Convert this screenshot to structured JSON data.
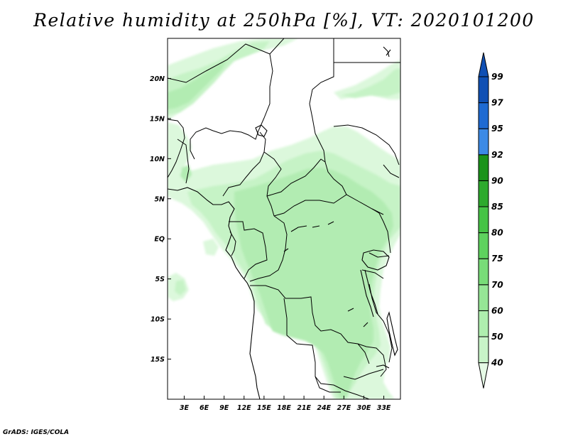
{
  "title": "Relative humidity at 250hPa [%], VT: 2020101200",
  "credit": "GrADS: IGES/COLA",
  "map": {
    "projection": "lat-lon",
    "lon_range": [
      0.5,
      35.5
    ],
    "lat_range": [
      -20,
      25
    ],
    "y_ticks": [
      {
        "value": 20,
        "label": "20N"
      },
      {
        "value": 15,
        "label": "15N"
      },
      {
        "value": 10,
        "label": "10N"
      },
      {
        "value": 5,
        "label": "5N"
      },
      {
        "value": 0,
        "label": "EQ"
      },
      {
        "value": -5,
        "label": "5S"
      },
      {
        "value": -10,
        "label": "10S"
      },
      {
        "value": -15,
        "label": "15S"
      }
    ],
    "x_ticks": [
      {
        "value": 3,
        "label": "3E"
      },
      {
        "value": 6,
        "label": "6E"
      },
      {
        "value": 9,
        "label": "9E"
      },
      {
        "value": 12,
        "label": "12E"
      },
      {
        "value": 15,
        "label": "15E"
      },
      {
        "value": 18,
        "label": "18E"
      },
      {
        "value": 21,
        "label": "21E"
      },
      {
        "value": 24,
        "label": "24E"
      },
      {
        "value": 27,
        "label": "27E"
      },
      {
        "value": 30,
        "label": "30E"
      },
      {
        "value": 33,
        "label": "33E"
      }
    ]
  },
  "colorbar": {
    "labels": [
      "40",
      "50",
      "60",
      "70",
      "75",
      "80",
      "85",
      "90",
      "92",
      "95",
      "97",
      "99"
    ],
    "colors": [
      "#e6fbe6",
      "#c8f4c8",
      "#aeeeae",
      "#96e696",
      "#78dc78",
      "#5ed25e",
      "#46c446",
      "#2daa2d",
      "#1a931a",
      "#3c8ae6",
      "#1e6ad2",
      "#1050b4"
    ]
  },
  "colors": {
    "rh_60_70": "#b4eeb4",
    "rh_50_60": "#c8f4c8",
    "rh_40_50": "#e6fbe6"
  }
}
